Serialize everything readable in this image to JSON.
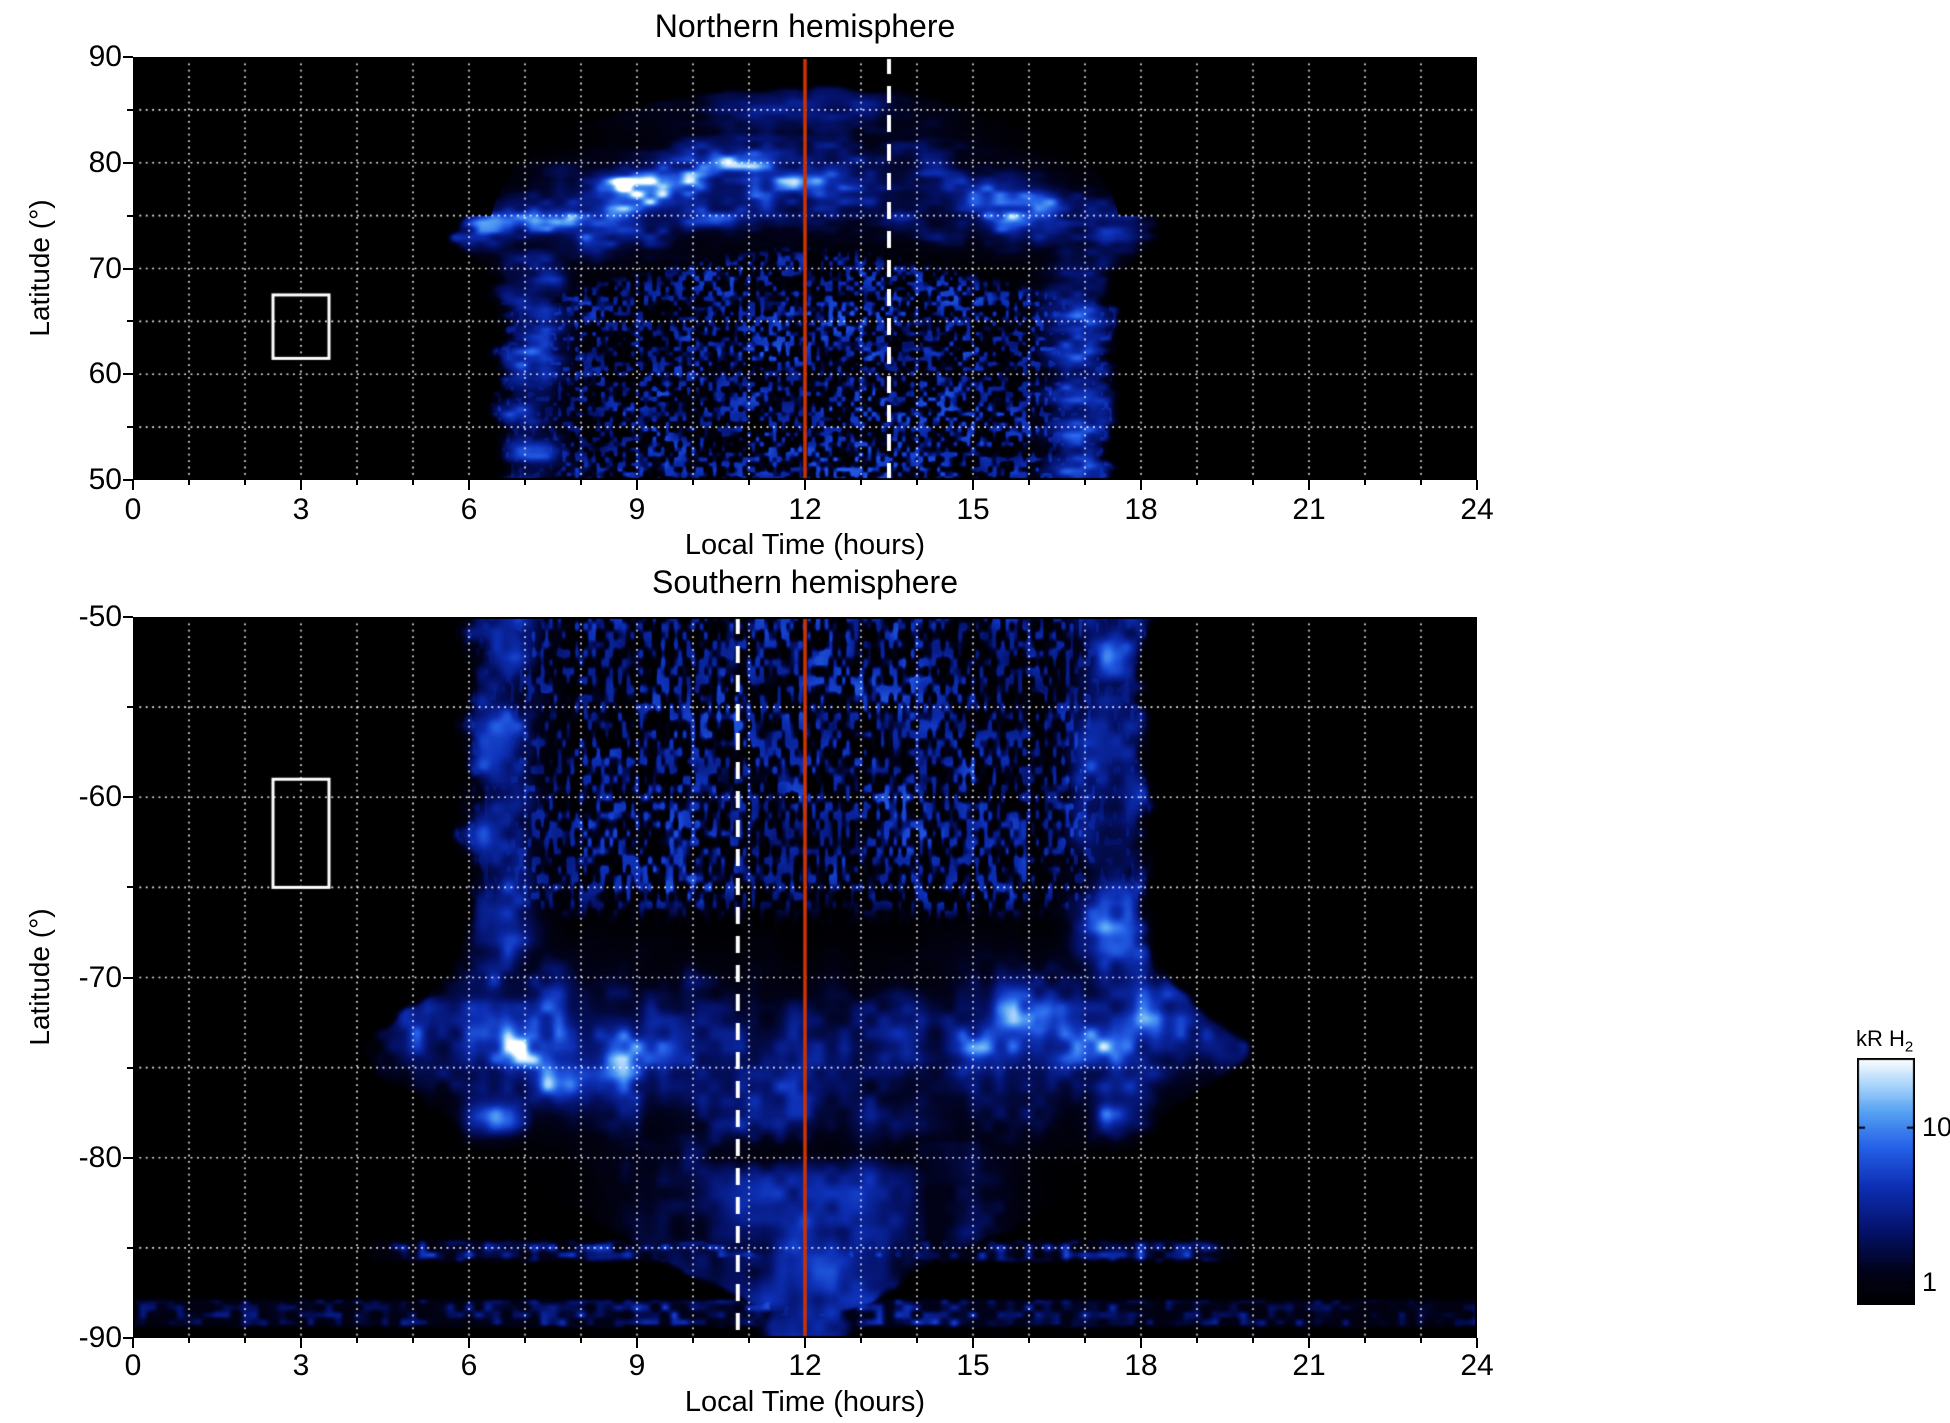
{
  "figure": {
    "background": "#ffffff"
  },
  "colormap": {
    "scale": "log",
    "stops": [
      {
        "t": 0.0,
        "color": "#000000"
      },
      {
        "t": 0.14,
        "color": "#01021c"
      },
      {
        "t": 0.3,
        "color": "#04126b"
      },
      {
        "t": 0.48,
        "color": "#0d2fb4"
      },
      {
        "t": 0.64,
        "color": "#2561e8"
      },
      {
        "t": 0.78,
        "color": "#55a0f2"
      },
      {
        "t": 0.89,
        "color": "#a8d4fb"
      },
      {
        "t": 1.0,
        "color": "#ffffff"
      }
    ]
  },
  "colorbar": {
    "label": "kR H",
    "label_subscript": "2",
    "tick_values": [
      10,
      1
    ],
    "value_range_kR": [
      0.72,
      28
    ]
  },
  "chart_data": [
    {
      "type": "heatmap",
      "title": "Northern hemisphere",
      "xlabel": "Local Time (hours)",
      "ylabel": "Latitude (°)",
      "xlim": [
        0,
        24
      ],
      "ylim": [
        50,
        90
      ],
      "xticks": [
        0,
        3,
        6,
        9,
        12,
        15,
        18,
        21,
        24
      ],
      "yticks": [
        90,
        80,
        70,
        60,
        50
      ],
      "grid": {
        "x_interval_hours": 1,
        "y_interval_deg": 5,
        "style": "dotted",
        "color": "#ffffff"
      },
      "units": "kR H2",
      "annotations": {
        "noon_line": {
          "local_time": 12,
          "color": "#cc3300",
          "style": "solid"
        },
        "dashed_line": {
          "local_time": 13.5,
          "color": "#ffffff",
          "style": "dashed"
        },
        "selection_box": {
          "local_time": [
            2.5,
            3.5
          ],
          "latitude": [
            61.5,
            67.5
          ],
          "color": "#ffffff"
        }
      },
      "features": {
        "data_coverage": {
          "local_time": [
            6.4,
            17.6
          ],
          "max_latitude": 87.5
        },
        "auroral_oval": {
          "latitude_at_noon": 79,
          "latitude_at_flanks": 74,
          "width_deg": 5
        },
        "bright_spots": [
          {
            "local_time": 8.4,
            "latitude": 74.5,
            "brightness": "saturated white, >10 kR"
          },
          {
            "local_time": 11.3,
            "latitude": 78,
            "brightness": "bright, ~10 kR"
          },
          {
            "local_time": 15.4,
            "latitude": 75,
            "brightness": "enhanced, 5-10 kR"
          }
        ],
        "diffuse_inner_emission": {
          "local_time": [
            6.5,
            17.5
          ],
          "latitude": [
            50,
            72
          ],
          "brightness": "patchy speckle ~1-3 kR"
        }
      }
    },
    {
      "type": "heatmap",
      "title": "Southern hemisphere",
      "xlabel": "Local Time (hours)",
      "ylabel": "Latitude (°)",
      "xlim": [
        0,
        24
      ],
      "ylim": [
        -90,
        -50
      ],
      "xticks": [
        0,
        3,
        6,
        9,
        12,
        15,
        18,
        21,
        24
      ],
      "yticks": [
        -50,
        -60,
        -70,
        -80,
        -90
      ],
      "grid": {
        "x_interval_hours": 1,
        "y_interval_deg": 5,
        "style": "dotted",
        "color": "#ffffff"
      },
      "units": "kR H2",
      "annotations": {
        "noon_line": {
          "local_time": 12,
          "color": "#cc3300",
          "style": "solid"
        },
        "dashed_line": {
          "local_time": 10.8,
          "color": "#ffffff",
          "style": "dashed"
        },
        "selection_box": {
          "local_time": [
            2.5,
            3.5
          ],
          "latitude": [
            -65,
            -59
          ],
          "color": "#ffffff"
        }
      },
      "features": {
        "data_coverage": {
          "local_time": [
            5.8,
            18.4
          ],
          "min_latitude": -90
        },
        "auroral_oval": {
          "latitude_at_noon": -75.3,
          "latitude_at_flanks": -72.5,
          "width_deg": 5
        },
        "bright_spots": [
          {
            "local_time": 7.2,
            "latitude": -73,
            "brightness": "saturated white, >10 kR"
          },
          {
            "local_time": 10.2,
            "latitude": -72,
            "brightness": "bright, ~10 kR"
          },
          {
            "local_time": 16.4,
            "latitude": -74,
            "brightness": "saturated white, >10 kR"
          }
        ],
        "diffuse_inner_emission": {
          "local_time": [
            6,
            18
          ],
          "latitude": [
            -67,
            -50
          ],
          "brightness": "patchy speckle ~1-3 kR"
        },
        "noon_funnel": {
          "local_time": 12,
          "latitude": [
            -88,
            -79
          ]
        },
        "polar_strips": [
          {
            "latitude_center": -85.2,
            "local_time": [
              4,
              20
            ]
          },
          {
            "latitude_center": -88.6,
            "local_time": [
              0,
              24
            ]
          }
        ]
      }
    }
  ]
}
